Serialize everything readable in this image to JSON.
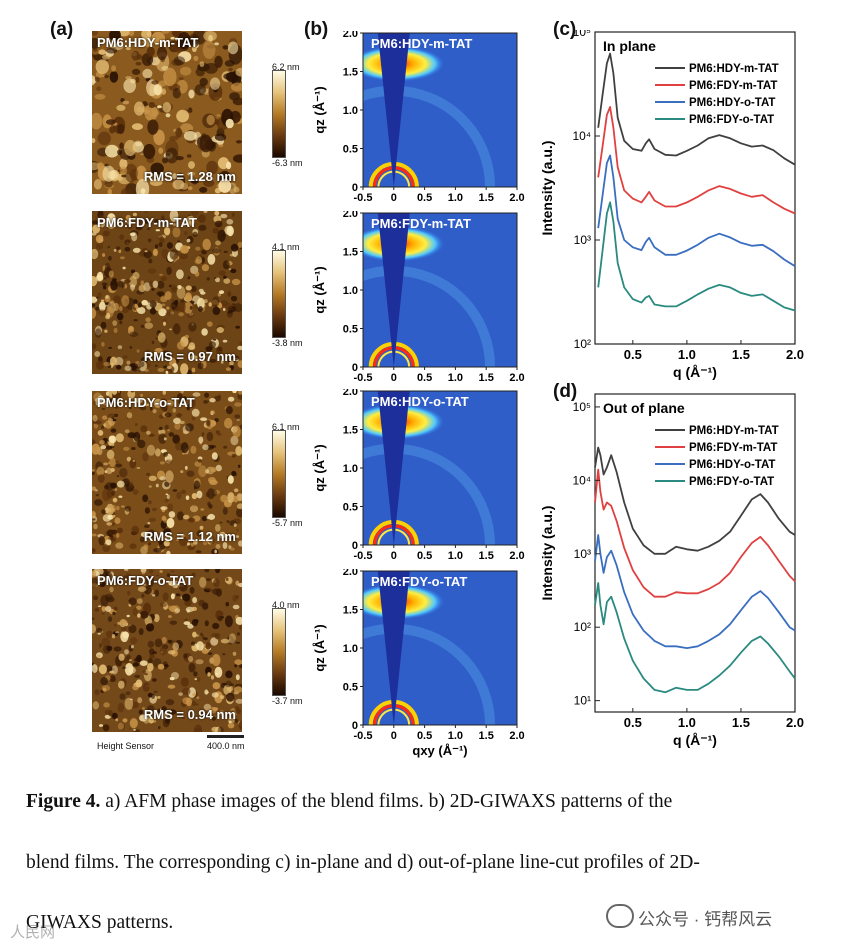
{
  "panel_labels": {
    "a": "(a)",
    "b": "(b)",
    "c": "(c)",
    "d": "(d)"
  },
  "afm": [
    {
      "title": "PM6:HDY-m-TAT",
      "rms": "RMS = 1.28 nm",
      "cmax": "6.2 nm",
      "cmin": "-6.3 nm"
    },
    {
      "title": "PM6:FDY-m-TAT",
      "rms": "RMS = 0.97 nm",
      "cmax": "4.1 nm",
      "cmin": "-3.8 nm"
    },
    {
      "title": "PM6:HDY-o-TAT",
      "rms": "RMS = 1.12 nm",
      "cmax": "6.1 nm",
      "cmin": "-5.7 nm"
    },
    {
      "title": "PM6:FDY-o-TAT",
      "rms": "RMS = 0.94 nm",
      "cmax": "4.0 nm",
      "cmin": "-3.7 nm"
    }
  ],
  "afm_footer": {
    "sensor": "Height Sensor",
    "scalebar": "400.0 nm"
  },
  "giwaxs": {
    "titles": [
      "PM6:HDY-m-TAT",
      "PM6:FDY-m-TAT",
      "PM6:HDY-o-TAT",
      "PM6:FDY-o-TAT"
    ],
    "ylabel": "qz (Å⁻¹)",
    "xlabel": "qxy (Å⁻¹)",
    "yticks": [
      "0",
      "0.5",
      "1.0",
      "1.5",
      "2.0"
    ],
    "xticks": [
      "-0.5",
      "0",
      "0.5",
      "1.0",
      "1.5",
      "2.0"
    ]
  },
  "chart_data": [
    {
      "type": "line",
      "title": "In plane",
      "xlabel": "q (Å⁻¹)",
      "ylabel": "Intensity (a.u.)",
      "xlim": [
        0.15,
        2.0
      ],
      "ylim": [
        100,
        100000
      ],
      "yscale": "log",
      "xticks": [
        "0.5",
        "1.0",
        "1.5",
        "2.0"
      ],
      "yticks": [
        "10²",
        "10³",
        "10⁴",
        "10⁵"
      ],
      "legend_position": "top-right",
      "series": [
        {
          "name": "PM6:HDY-m-TAT",
          "color": "#404040",
          "x": [
            0.18,
            0.22,
            0.26,
            0.29,
            0.32,
            0.36,
            0.42,
            0.5,
            0.58,
            0.62,
            0.65,
            0.7,
            0.8,
            0.9,
            1.0,
            1.1,
            1.2,
            1.3,
            1.4,
            1.5,
            1.6,
            1.7,
            1.8,
            1.9,
            2.0
          ],
          "y": [
            12000,
            25000,
            50000,
            62000,
            40000,
            15000,
            9000,
            7500,
            7200,
            8500,
            9300,
            7500,
            6600,
            6500,
            7200,
            8100,
            9500,
            10200,
            9500,
            8500,
            7900,
            8100,
            7300,
            6100,
            5300
          ]
        },
        {
          "name": "PM6:FDY-m-TAT",
          "color": "#e04040",
          "x": [
            0.18,
            0.22,
            0.26,
            0.29,
            0.32,
            0.36,
            0.42,
            0.5,
            0.58,
            0.62,
            0.65,
            0.7,
            0.8,
            0.9,
            1.0,
            1.1,
            1.2,
            1.3,
            1.4,
            1.5,
            1.6,
            1.7,
            1.8,
            1.9,
            2.0
          ],
          "y": [
            4000,
            8000,
            16000,
            19000,
            12000,
            5000,
            3000,
            2500,
            2300,
            2600,
            2900,
            2400,
            2100,
            2100,
            2300,
            2600,
            3000,
            3300,
            3100,
            2800,
            2600,
            2700,
            2300,
            2000,
            1800
          ]
        },
        {
          "name": "PM6:HDY-o-TAT",
          "color": "#3a6ec0",
          "x": [
            0.18,
            0.22,
            0.26,
            0.29,
            0.32,
            0.36,
            0.42,
            0.5,
            0.58,
            0.62,
            0.65,
            0.7,
            0.8,
            0.9,
            1.0,
            1.1,
            1.2,
            1.3,
            1.4,
            1.5,
            1.6,
            1.7,
            1.8,
            1.9,
            2.0
          ],
          "y": [
            1300,
            2700,
            5500,
            6500,
            4000,
            1600,
            1000,
            850,
            800,
            960,
            1050,
            850,
            720,
            720,
            790,
            900,
            1050,
            1150,
            1060,
            940,
            880,
            900,
            780,
            650,
            560
          ]
        },
        {
          "name": "PM6:FDY-o-TAT",
          "color": "#2a8a80",
          "x": [
            0.18,
            0.22,
            0.26,
            0.29,
            0.32,
            0.36,
            0.42,
            0.5,
            0.58,
            0.62,
            0.65,
            0.7,
            0.8,
            0.9,
            1.0,
            1.1,
            1.2,
            1.3,
            1.4,
            1.5,
            1.6,
            1.7,
            1.8,
            1.9,
            2.0
          ],
          "y": [
            350,
            800,
            1800,
            2300,
            1500,
            600,
            350,
            270,
            250,
            280,
            290,
            240,
            230,
            230,
            260,
            300,
            340,
            370,
            350,
            310,
            290,
            300,
            260,
            225,
            210
          ]
        }
      ]
    },
    {
      "type": "line",
      "title": "Out of plane",
      "xlabel": "q (Å⁻¹)",
      "ylabel": "Intensity (a.u.)",
      "xlim": [
        0.15,
        2.0
      ],
      "ylim": [
        7,
        150000
      ],
      "yscale": "log",
      "xticks": [
        "0.5",
        "1.0",
        "1.5",
        "2.0"
      ],
      "yticks": [
        "10¹",
        "10²",
        "10³",
        "10⁴",
        "10⁵"
      ],
      "legend_position": "top-right",
      "series": [
        {
          "name": "PM6:HDY-m-TAT",
          "color": "#404040",
          "x": [
            0.15,
            0.18,
            0.2,
            0.23,
            0.26,
            0.3,
            0.35,
            0.42,
            0.5,
            0.6,
            0.7,
            0.8,
            0.9,
            1.0,
            1.1,
            1.2,
            1.3,
            1.4,
            1.5,
            1.6,
            1.68,
            1.75,
            1.85,
            1.95,
            2.0
          ],
          "y": [
            15000,
            28000,
            22000,
            12000,
            15000,
            22000,
            13000,
            5000,
            2200,
            1300,
            1000,
            1000,
            1250,
            1150,
            1100,
            1250,
            1500,
            2000,
            3300,
            5500,
            6500,
            5000,
            3000,
            2000,
            1800
          ]
        },
        {
          "name": "PM6:FDY-m-TAT",
          "color": "#e04040",
          "x": [
            0.15,
            0.18,
            0.2,
            0.23,
            0.26,
            0.3,
            0.35,
            0.42,
            0.5,
            0.6,
            0.7,
            0.8,
            0.9,
            1.0,
            1.1,
            1.2,
            1.3,
            1.4,
            1.5,
            1.6,
            1.68,
            1.75,
            1.85,
            1.95,
            2.0
          ],
          "y": [
            5000,
            14000,
            7000,
            4000,
            5000,
            4500,
            2800,
            1200,
            600,
            350,
            260,
            260,
            300,
            290,
            290,
            330,
            400,
            550,
            900,
            1400,
            1700,
            1300,
            800,
            500,
            420
          ]
        },
        {
          "name": "PM6:HDY-o-TAT",
          "color": "#3a6ec0",
          "x": [
            0.15,
            0.18,
            0.2,
            0.23,
            0.26,
            0.3,
            0.35,
            0.42,
            0.5,
            0.6,
            0.7,
            0.8,
            0.9,
            1.0,
            1.1,
            1.2,
            1.3,
            1.4,
            1.5,
            1.6,
            1.68,
            1.75,
            1.85,
            1.95,
            2.0
          ],
          "y": [
            800,
            1800,
            1000,
            550,
            900,
            1100,
            700,
            300,
            150,
            90,
            65,
            55,
            55,
            52,
            55,
            65,
            80,
            110,
            170,
            260,
            310,
            250,
            160,
            100,
            90
          ]
        },
        {
          "name": "PM6:FDY-o-TAT",
          "color": "#2a8a80",
          "x": [
            0.15,
            0.18,
            0.2,
            0.23,
            0.26,
            0.3,
            0.35,
            0.42,
            0.5,
            0.6,
            0.7,
            0.8,
            0.9,
            1.0,
            1.1,
            1.2,
            1.3,
            1.4,
            1.5,
            1.6,
            1.68,
            1.75,
            1.85,
            1.95,
            2.0
          ],
          "y": [
            200,
            400,
            200,
            110,
            220,
            260,
            160,
            70,
            35,
            20,
            14,
            13,
            15,
            14,
            14,
            17,
            22,
            30,
            45,
            65,
            75,
            60,
            40,
            25,
            20
          ]
        }
      ]
    }
  ],
  "caption": {
    "figure_label": "Figure 4.",
    "line1_rest": " a) AFM phase images of the blend films. b) 2D-GIWAXS patterns of the",
    "line2": "blend films. The corresponding c) in-plane and d) out-of-plane line-cut profiles of 2D-",
    "line3": "GIWAXS patterns."
  },
  "watermark": {
    "left": "人民网",
    "right": "公众号 · 钙帮风云"
  }
}
